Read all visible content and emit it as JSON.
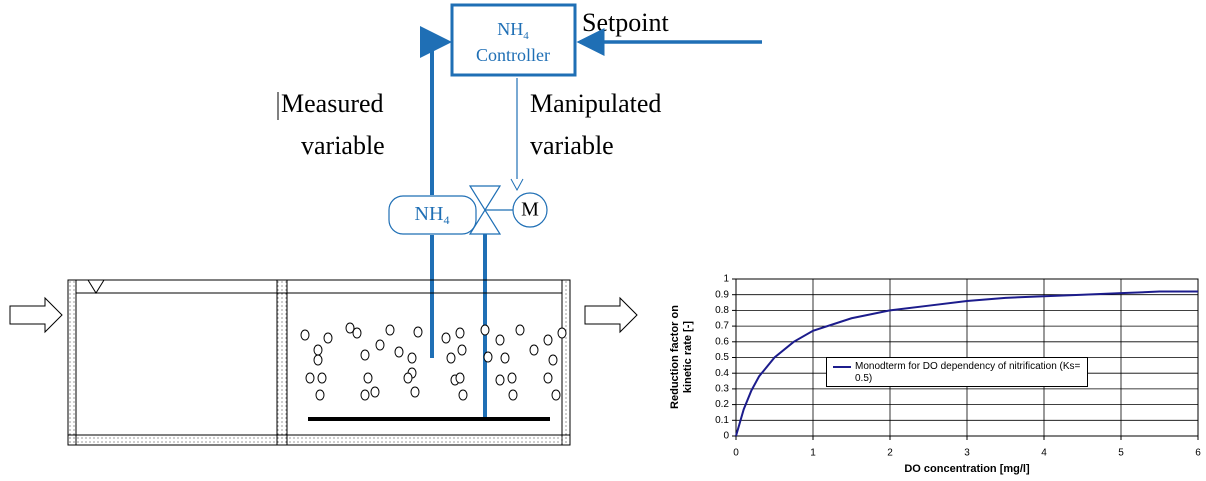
{
  "diagram": {
    "controller": {
      "name": "NH",
      "subscript": "4",
      "label": "Controller"
    },
    "setpoint": "Setpoint",
    "measured": [
      "Measured",
      "variable"
    ],
    "manipulated": [
      "Manipulated",
      "variable"
    ],
    "sensor": {
      "name": "NH",
      "subscript": "4"
    },
    "motor": "M"
  },
  "chart_data": {
    "type": "line",
    "xlabel": "DO concentration [mg/l]",
    "ylabel": [
      "Reduction factor on",
      "kinetic rate [-]"
    ],
    "x": [
      0,
      0.1,
      0.2,
      0.3,
      0.5,
      0.75,
      1,
      1.5,
      2,
      2.5,
      3,
      3.5,
      4,
      4.5,
      5,
      5.5,
      6
    ],
    "series": [
      {
        "name": "Monodterm for DO dependency of nitrification (Ks= 0.5)",
        "color": "#1c1c8c",
        "values": [
          0,
          0.17,
          0.29,
          0.38,
          0.5,
          0.6,
          0.67,
          0.75,
          0.8,
          0.83,
          0.86,
          0.88,
          0.89,
          0.9,
          0.91,
          0.92,
          0.92
        ]
      }
    ],
    "xlim": [
      0,
      6
    ],
    "xticks": [
      0,
      1,
      2,
      3,
      4,
      5,
      6
    ],
    "ylim": [
      0,
      1
    ],
    "yticks": [
      0,
      0.1,
      0.2,
      0.3,
      0.4,
      0.5,
      0.6,
      0.7,
      0.8,
      0.9,
      1
    ],
    "grid": true
  }
}
